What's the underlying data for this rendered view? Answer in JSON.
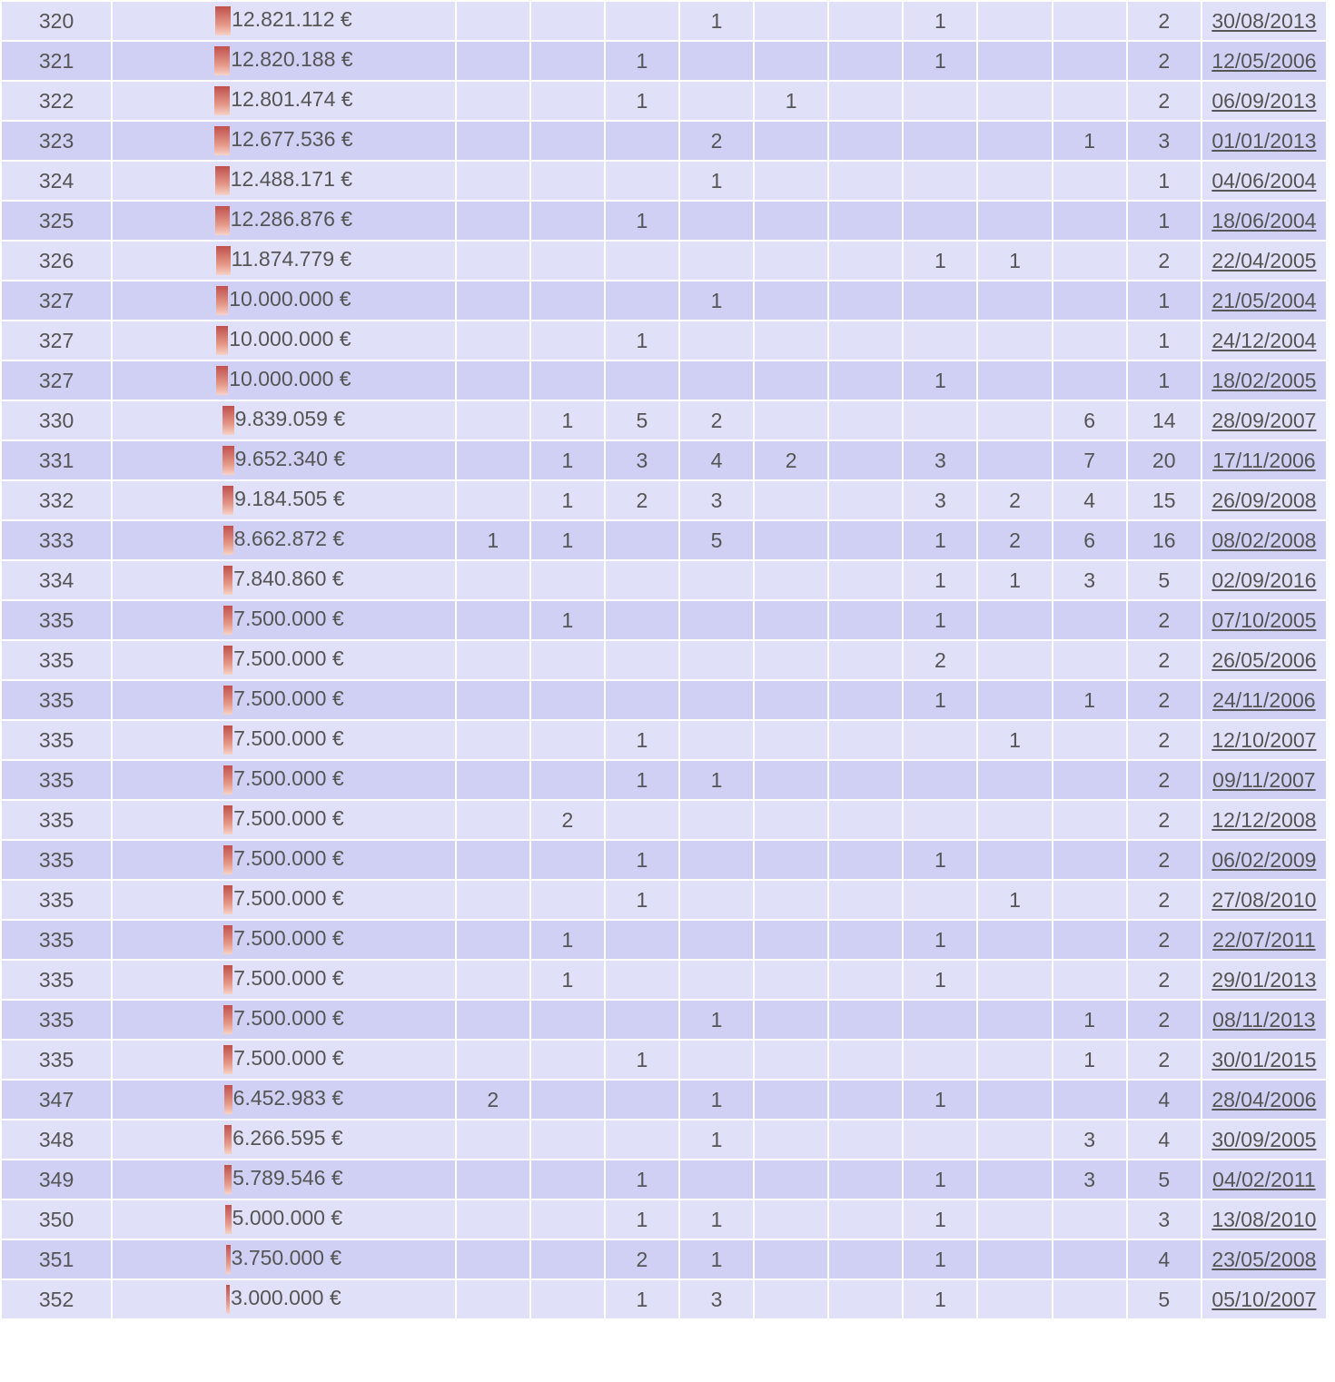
{
  "currency_suffix": " €",
  "bar_color": "#c0504d",
  "row_bg_light": "#e0e0f8",
  "row_bg_dark": "#d0d0f4",
  "rows": [
    {
      "rank": "320",
      "amount": "12.821.112 €",
      "c": [
        "",
        "",
        "",
        "1",
        "",
        "",
        "1",
        "",
        "",
        "2"
      ],
      "date": "30/08/2013",
      "bar_level": 0.0445
    },
    {
      "rank": "321",
      "amount": "12.820.188 €",
      "c": [
        "",
        "",
        "1",
        "",
        "",
        "",
        "1",
        "",
        "",
        "2"
      ],
      "date": "12/05/2006",
      "bar_level": 0.0445
    },
    {
      "rank": "322",
      "amount": "12.801.474 €",
      "c": [
        "",
        "",
        "1",
        "",
        "1",
        "",
        "",
        "",
        "",
        "2"
      ],
      "date": "06/09/2013",
      "bar_level": 0.0444
    },
    {
      "rank": "323",
      "amount": "12.677.536 €",
      "c": [
        "",
        "",
        "",
        "2",
        "",
        "",
        "",
        "",
        "1",
        "3"
      ],
      "date": "01/01/2013",
      "bar_level": 0.044
    },
    {
      "rank": "324",
      "amount": "12.488.171 €",
      "c": [
        "",
        "",
        "",
        "1",
        "",
        "",
        "",
        "",
        "",
        "1"
      ],
      "date": "04/06/2004",
      "bar_level": 0.0433
    },
    {
      "rank": "325",
      "amount": "12.286.876 €",
      "c": [
        "",
        "",
        "1",
        "",
        "",
        "",
        "",
        "",
        "",
        "1"
      ],
      "date": "18/06/2004",
      "bar_level": 0.0426
    },
    {
      "rank": "326",
      "amount": "11.874.779 €",
      "c": [
        "",
        "",
        "",
        "",
        "",
        "",
        "1",
        "1",
        "",
        "2"
      ],
      "date": "22/04/2005",
      "bar_level": 0.0412
    },
    {
      "rank": "327",
      "amount": "10.000.000 €",
      "c": [
        "",
        "",
        "",
        "1",
        "",
        "",
        "",
        "",
        "",
        "1"
      ],
      "date": "21/05/2004",
      "bar_level": 0.0347
    },
    {
      "rank": "327",
      "amount": "10.000.000 €",
      "c": [
        "",
        "",
        "1",
        "",
        "",
        "",
        "",
        "",
        "",
        "1"
      ],
      "date": "24/12/2004",
      "bar_level": 0.0347
    },
    {
      "rank": "327",
      "amount": "10.000.000 €",
      "c": [
        "",
        "",
        "",
        "",
        "",
        "",
        "1",
        "",
        "",
        "1"
      ],
      "date": "18/02/2005",
      "bar_level": 0.0347
    },
    {
      "rank": "330",
      "amount": "9.839.059 €",
      "c": [
        "",
        "1",
        "5",
        "2",
        "",
        "",
        "",
        "",
        "6",
        "14"
      ],
      "date": "28/09/2007",
      "bar_level": 0.0341
    },
    {
      "rank": "331",
      "amount": "9.652.340 €",
      "c": [
        "",
        "1",
        "3",
        "4",
        "2",
        "",
        "3",
        "",
        "7",
        "20"
      ],
      "date": "17/11/2006",
      "bar_level": 0.0335
    },
    {
      "rank": "332",
      "amount": "9.184.505 €",
      "c": [
        "",
        "1",
        "2",
        "3",
        "",
        "",
        "3",
        "2",
        "4",
        "15"
      ],
      "date": "26/09/2008",
      "bar_level": 0.0319
    },
    {
      "rank": "333",
      "amount": "8.662.872 €",
      "c": [
        "1",
        "1",
        "",
        "5",
        "",
        "",
        "1",
        "2",
        "6",
        "16"
      ],
      "date": "08/02/2008",
      "bar_level": 0.0301
    },
    {
      "rank": "334",
      "amount": "7.840.860 €",
      "c": [
        "",
        "",
        "",
        "",
        "",
        "",
        "1",
        "1",
        "3",
        "5"
      ],
      "date": "02/09/2016",
      "bar_level": 0.0272
    },
    {
      "rank": "335",
      "amount": "7.500.000 €",
      "c": [
        "",
        "1",
        "",
        "",
        "",
        "",
        "1",
        "",
        "",
        "2"
      ],
      "date": "07/10/2005",
      "bar_level": 0.026
    },
    {
      "rank": "335",
      "amount": "7.500.000 €",
      "c": [
        "",
        "",
        "",
        "",
        "",
        "",
        "2",
        "",
        "",
        "2"
      ],
      "date": "26/05/2006",
      "bar_level": 0.026
    },
    {
      "rank": "335",
      "amount": "7.500.000 €",
      "c": [
        "",
        "",
        "",
        "",
        "",
        "",
        "1",
        "",
        "1",
        "2"
      ],
      "date": "24/11/2006",
      "bar_level": 0.026
    },
    {
      "rank": "335",
      "amount": "7.500.000 €",
      "c": [
        "",
        "",
        "1",
        "",
        "",
        "",
        "",
        "1",
        "",
        "2"
      ],
      "date": "12/10/2007",
      "bar_level": 0.026
    },
    {
      "rank": "335",
      "amount": "7.500.000 €",
      "c": [
        "",
        "",
        "1",
        "1",
        "",
        "",
        "",
        "",
        "",
        "2"
      ],
      "date": "09/11/2007",
      "bar_level": 0.026
    },
    {
      "rank": "335",
      "amount": "7.500.000 €",
      "c": [
        "",
        "2",
        "",
        "",
        "",
        "",
        "",
        "",
        "",
        "2"
      ],
      "date": "12/12/2008",
      "bar_level": 0.026
    },
    {
      "rank": "335",
      "amount": "7.500.000 €",
      "c": [
        "",
        "",
        "1",
        "",
        "",
        "",
        "1",
        "",
        "",
        "2"
      ],
      "date": "06/02/2009",
      "bar_level": 0.026
    },
    {
      "rank": "335",
      "amount": "7.500.000 €",
      "c": [
        "",
        "",
        "1",
        "",
        "",
        "",
        "",
        "1",
        "",
        "2"
      ],
      "date": "27/08/2010",
      "bar_level": 0.026
    },
    {
      "rank": "335",
      "amount": "7.500.000 €",
      "c": [
        "",
        "1",
        "",
        "",
        "",
        "",
        "1",
        "",
        "",
        "2"
      ],
      "date": "22/07/2011",
      "bar_level": 0.026
    },
    {
      "rank": "335",
      "amount": "7.500.000 €",
      "c": [
        "",
        "1",
        "",
        "",
        "",
        "",
        "1",
        "",
        "",
        "2"
      ],
      "date": "29/01/2013",
      "bar_level": 0.026
    },
    {
      "rank": "335",
      "amount": "7.500.000 €",
      "c": [
        "",
        "",
        "",
        "1",
        "",
        "",
        "",
        "",
        "1",
        "2"
      ],
      "date": "08/11/2013",
      "bar_level": 0.026
    },
    {
      "rank": "335",
      "amount": "7.500.000 €",
      "c": [
        "",
        "",
        "1",
        "",
        "",
        "",
        "",
        "",
        "1",
        "2"
      ],
      "date": "30/01/2015",
      "bar_level": 0.026
    },
    {
      "rank": "347",
      "amount": "6.452.983 €",
      "c": [
        "2",
        "",
        "",
        "1",
        "",
        "",
        "1",
        "",
        "",
        "4"
      ],
      "date": "28/04/2006",
      "bar_level": 0.0224
    },
    {
      "rank": "348",
      "amount": "6.266.595 €",
      "c": [
        "",
        "",
        "",
        "1",
        "",
        "",
        "",
        "",
        "3",
        "4"
      ],
      "date": "30/09/2005",
      "bar_level": 0.0218
    },
    {
      "rank": "349",
      "amount": "5.789.546 €",
      "c": [
        "",
        "",
        "1",
        "",
        "",
        "",
        "1",
        "",
        "3",
        "5"
      ],
      "date": "04/02/2011",
      "bar_level": 0.0201
    },
    {
      "rank": "350",
      "amount": "5.000.000 €",
      "c": [
        "",
        "",
        "1",
        "1",
        "",
        "",
        "1",
        "",
        "",
        "3"
      ],
      "date": "13/08/2010",
      "bar_level": 0.0174
    },
    {
      "rank": "351",
      "amount": "3.750.000 €",
      "c": [
        "",
        "",
        "2",
        "1",
        "",
        "",
        "1",
        "",
        "",
        "4"
      ],
      "date": "23/05/2008",
      "bar_level": 0.013
    },
    {
      "rank": "352",
      "amount": "3.000.000 €",
      "c": [
        "",
        "",
        "1",
        "3",
        "",
        "",
        "1",
        "",
        "",
        "5"
      ],
      "date": "05/10/2007",
      "bar_level": 0.0104
    }
  ]
}
